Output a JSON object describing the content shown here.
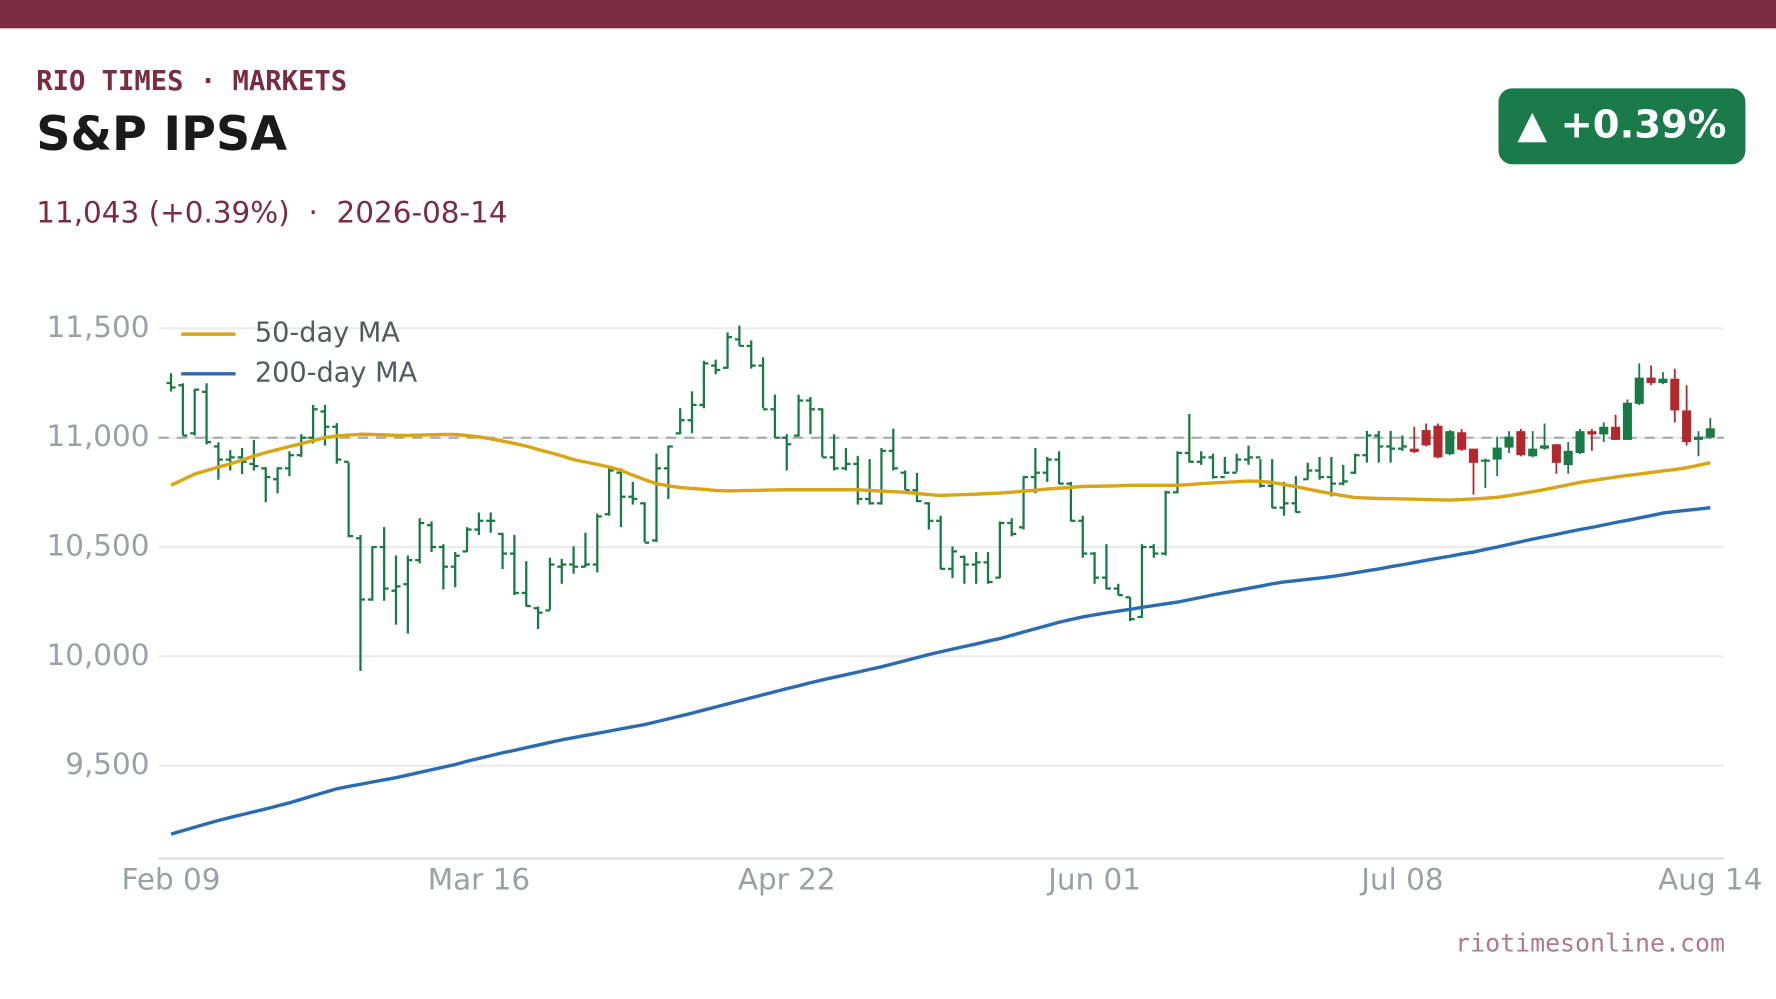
{
  "header": {
    "brand": "RIO TIMES · MARKETS",
    "title": "S&P IPSA",
    "subtitle": "11,043 (+0.39%)  ·  2026-08-14",
    "badge": "▲ +0.39%"
  },
  "footer": "riotimesonline.com",
  "chart_data": {
    "type": "ohlc",
    "categories": [
      "Feb 09",
      null,
      null,
      null,
      null,
      null,
      null,
      null,
      null,
      null,
      null,
      null,
      null,
      null,
      null,
      null,
      null,
      null,
      null,
      null,
      null,
      null,
      null,
      null,
      null,
      null,
      "Mar 16",
      null,
      null,
      null,
      null,
      null,
      null,
      null,
      null,
      null,
      null,
      null,
      null,
      null,
      null,
      null,
      null,
      null,
      null,
      null,
      null,
      null,
      null,
      null,
      null,
      null,
      "Apr 22",
      null,
      null,
      null,
      null,
      null,
      null,
      null,
      null,
      null,
      null,
      null,
      null,
      null,
      null,
      null,
      null,
      null,
      null,
      null,
      null,
      null,
      null,
      null,
      null,
      null,
      "Jun 01",
      null,
      null,
      null,
      null,
      null,
      null,
      null,
      null,
      null,
      null,
      null,
      null,
      null,
      null,
      null,
      null,
      null,
      null,
      null,
      null,
      null,
      null,
      null,
      null,
      null,
      "Jul 08",
      null,
      null,
      null,
      null,
      null,
      null,
      null,
      null,
      null,
      null,
      null,
      null,
      null,
      null,
      null,
      null,
      null,
      null,
      null,
      null,
      null,
      null,
      null,
      null,
      null,
      "Aug 14"
    ],
    "ylim": [
      9075,
      11650
    ],
    "yticks": [
      {
        "value": 9500,
        "label": "9,500"
      },
      {
        "value": 10000,
        "label": "10,000"
      },
      {
        "value": 10500,
        "label": "10,500"
      },
      {
        "value": 11000,
        "label": "11,000"
      },
      {
        "value": 11500,
        "label": "11,500"
      }
    ],
    "grid": true,
    "hline": 11000,
    "legend": "upper-left",
    "bars": {
      "color": "#1a7a45",
      "open": [
        11250,
        11240,
        11020,
        11210,
        10960,
        10900,
        10910,
        10880,
        10860,
        10810,
        10860,
        10920,
        11000,
        11120,
        11050,
        10890,
        10540,
        10260,
        10500,
        10300,
        10330,
        10440,
        10600,
        10500,
        10410,
        10480,
        10580,
        10620,
        10560,
        10470,
        10290,
        10220,
        10210,
        10410,
        10420,
        10410,
        10420,
        10650,
        10840,
        10730,
        10700,
        10530,
        10860,
        11020,
        11080,
        11150,
        11330,
        11320,
        11450,
        11420,
        11330,
        11130,
        11000,
        11010,
        11170,
        11130,
        10910,
        10860,
        10880,
        10720,
        10700,
        10940,
        10840,
        10760,
        10700,
        10620,
        10400,
        10455,
        10420,
        10430,
        10360,
        10610,
        10590,
        10820,
        10840,
        10900,
        10790,
        10620,
        10470,
        10360,
        10310,
        10270,
        10180,
        10500,
        10470,
        10750,
        10930,
        10890,
        10910,
        10820,
        10840,
        10900,
        10910,
        10780,
        10680,
        10700,
        10810,
        10850,
        10820,
        10790,
        10840,
        10920,
        11010,
        10960,
        10950
      ],
      "high": [
        11295,
        11249,
        11223,
        11249,
        10979,
        10943,
        10953,
        10990,
        10865,
        10865,
        10938,
        11016,
        11150,
        11150,
        11067,
        10886,
        10555,
        10503,
        10591,
        10461,
        10461,
        10632,
        10617,
        10513,
        10477,
        10591,
        10658,
        10658,
        10565,
        10555,
        10435,
        10228,
        10451,
        10446,
        10503,
        10565,
        10653,
        10865,
        10860,
        10798,
        10705,
        10927,
        10964,
        11135,
        11212,
        11352,
        11357,
        11482,
        11513,
        11445,
        11368,
        11197,
        11016,
        11197,
        11186,
        11135,
        11016,
        10953,
        10917,
        10902,
        10953,
        11041,
        10850,
        10839,
        10705,
        10643,
        10503,
        10461,
        10477,
        10477,
        10617,
        10632,
        10824,
        10953,
        10912,
        10938,
        10798,
        10643,
        10477,
        10513,
        10332,
        10270,
        10513,
        10513,
        10757,
        10938,
        11109,
        10938,
        10927,
        10912,
        10927,
        10964,
        10902,
        10902,
        10798,
        10824,
        10886,
        10912,
        10912,
        10876,
        10927,
        11031,
        11031,
        11031,
        11010
      ],
      "low": [
        11212,
        11010,
        11010,
        10969,
        10808,
        10850,
        10834,
        10850,
        10705,
        10746,
        10824,
        10912,
        10974,
        10964,
        10881,
        10545,
        9933,
        10254,
        10254,
        10145,
        10104,
        10425,
        10477,
        10306,
        10316,
        10477,
        10555,
        10565,
        10399,
        10280,
        10228,
        10125,
        10213,
        10332,
        10378,
        10409,
        10384,
        10643,
        10591,
        10694,
        10523,
        10523,
        10720,
        11016,
        11021,
        11135,
        11290,
        11316,
        11420,
        11316,
        11135,
        11000,
        10850,
        11005,
        11016,
        10912,
        10850,
        10850,
        10694,
        10694,
        10694,
        10850,
        10762,
        10705,
        10580,
        10399,
        10358,
        10332,
        10332,
        10332,
        10358,
        10549,
        10580,
        10746,
        10798,
        10788,
        10617,
        10451,
        10332,
        10306,
        10280,
        10161,
        10176,
        10451,
        10461,
        10746,
        10886,
        10876,
        10813,
        10834,
        10845,
        10876,
        10772,
        10679,
        10643,
        10658,
        10808,
        10808,
        10731,
        10782,
        10834,
        10886,
        10886,
        10886,
        10940
      ],
      "close": [
        11230,
        11010,
        11220,
        10980,
        10900,
        10910,
        10890,
        10870,
        10820,
        10860,
        10920,
        11000,
        11130,
        11050,
        10900,
        10550,
        10260,
        10500,
        10310,
        10320,
        10440,
        10610,
        10500,
        10410,
        10460,
        10580,
        10620,
        10620,
        10470,
        10290,
        10230,
        10200,
        10420,
        10420,
        10410,
        10420,
        10640,
        10850,
        10730,
        10720,
        10520,
        10860,
        10960,
        11080,
        11150,
        11340,
        11310,
        11460,
        11420,
        11330,
        11130,
        11000,
        10970,
        11170,
        11130,
        10910,
        10860,
        10880,
        10720,
        10700,
        10940,
        10860,
        10760,
        10710,
        10620,
        10400,
        10480,
        10420,
        10430,
        10340,
        10610,
        10560,
        10820,
        10840,
        10900,
        10790,
        10620,
        10470,
        10360,
        10310,
        10280,
        10170,
        10500,
        10470,
        10750,
        10930,
        10890,
        10910,
        10820,
        10840,
        10900,
        10910,
        10780,
        10680,
        10700,
        10660,
        10850,
        10820,
        10790,
        10800,
        10920,
        11010,
        10960,
        10950,
        10960
      ]
    },
    "candles": {
      "up_color": "#1a7a45",
      "down_color": "#b3282d",
      "open": [
        10950,
        11035,
        11055,
        10925,
        11025,
        10950,
        10890,
        10900,
        10955,
        11030,
        10915,
        10950,
        10970,
        10875,
        10930,
        11030,
        11015,
        11050,
        10990,
        11155,
        11275,
        11250,
        11270,
        11125,
        10990,
        11000
      ],
      "high": [
        11050,
        11065,
        11065,
        11035,
        11040,
        10950,
        10905,
        11005,
        11030,
        11040,
        11030,
        11065,
        10970,
        10980,
        11040,
        11040,
        11070,
        11105,
        11175,
        11340,
        11330,
        11300,
        11315,
        11240,
        11030,
        11090
      ],
      "low": [
        10930,
        10960,
        10905,
        10920,
        10940,
        10740,
        10770,
        10825,
        10930,
        10915,
        10910,
        10945,
        10835,
        10835,
        10925,
        10940,
        10980,
        10990,
        10990,
        11150,
        11240,
        11245,
        11070,
        10965,
        10915,
        10995
      ],
      "close": [
        10935,
        10965,
        10910,
        11030,
        10945,
        10885,
        10900,
        10955,
        11005,
        10920,
        10950,
        10965,
        10885,
        10940,
        11030,
        11015,
        11050,
        10990,
        11160,
        11275,
        11250,
        11270,
        11125,
        10980,
        11005,
        11043
      ]
    },
    "series": [
      {
        "name": "50-day MA",
        "color": "#d9a514",
        "values": [
          10782,
          10808,
          10834,
          10850,
          10866,
          10880,
          10898,
          10916,
          10932,
          10946,
          10960,
          10973,
          10987,
          11001,
          11008,
          11012,
          11016,
          11015,
          11013,
          11011,
          11010,
          11012,
          11014,
          11015,
          11015,
          11010,
          11004,
          10995,
          10985,
          10974,
          10962,
          10946,
          10932,
          10917,
          10900,
          10889,
          10878,
          10866,
          10851,
          10829,
          10808,
          10790,
          10780,
          10772,
          10768,
          10764,
          10759,
          10757,
          10758,
          10759,
          10760,
          10761,
          10762,
          10762,
          10762,
          10762,
          10762,
          10762,
          10762,
          10759,
          10756,
          10753,
          10750,
          10745,
          10740,
          10736,
          10738,
          10740,
          10742,
          10745,
          10747,
          10751,
          10755,
          10760,
          10765,
          10769,
          10773,
          10777,
          10778,
          10779,
          10780,
          10782,
          10782,
          10782,
          10782,
          10782,
          10786,
          10790,
          10793,
          10796,
          10799,
          10802,
          10801,
          10795,
          10786,
          10776,
          10765,
          10754,
          10744,
          10735,
          10726,
          10724,
          10722,
          10721,
          10720,
          10719,
          10717,
          10716,
          10715,
          10717,
          10720,
          10723,
          10727,
          10735,
          10744,
          10753,
          10763,
          10774,
          10785,
          10796,
          10804,
          10812,
          10820,
          10827,
          10834,
          10841,
          10848,
          10854,
          10863,
          10874,
          10886
        ]
      },
      {
        "name": "200-day MA",
        "color": "#2b6cb0",
        "values": [
          9187,
          9203,
          9218,
          9234,
          9249,
          9263,
          9276,
          9289,
          9302,
          9316,
          9330,
          9346,
          9362,
          9378,
          9394,
          9405,
          9415,
          9425,
          9435,
          9445,
          9457,
          9469,
          9481,
          9493,
          9505,
          9520,
          9533,
          9546,
          9559,
          9570,
          9582,
          9594,
          9606,
          9618,
          9628,
          9638,
          9648,
          9658,
          9668,
          9678,
          9688,
          9701,
          9714,
          9727,
          9740,
          9754,
          9768,
          9782,
          9796,
          9810,
          9824,
          9838,
          9852,
          9865,
          9879,
          9892,
          9904,
          9916,
          9928,
          9940,
          9952,
          9966,
          9980,
          9994,
          10008,
          10021,
          10033,
          10045,
          10057,
          10069,
          10081,
          10096,
          10111,
          10126,
          10141,
          10156,
          10168,
          10180,
          10190,
          10199,
          10207,
          10215,
          10224,
          10232,
          10240,
          10248,
          10259,
          10270,
          10281,
          10291,
          10301,
          10311,
          10321,
          10332,
          10340,
          10346,
          10352,
          10358,
          10365,
          10373,
          10382,
          10391,
          10400,
          10410,
          10419,
          10429,
          10439,
          10449,
          10458,
          10468,
          10477,
          10489,
          10500,
          10512,
          10524,
          10536,
          10547,
          10558,
          10569,
          10580,
          10590,
          10601,
          10612,
          10622,
          10633,
          10644,
          10655,
          10662,
          10668,
          10674,
          10680
        ]
      }
    ]
  }
}
